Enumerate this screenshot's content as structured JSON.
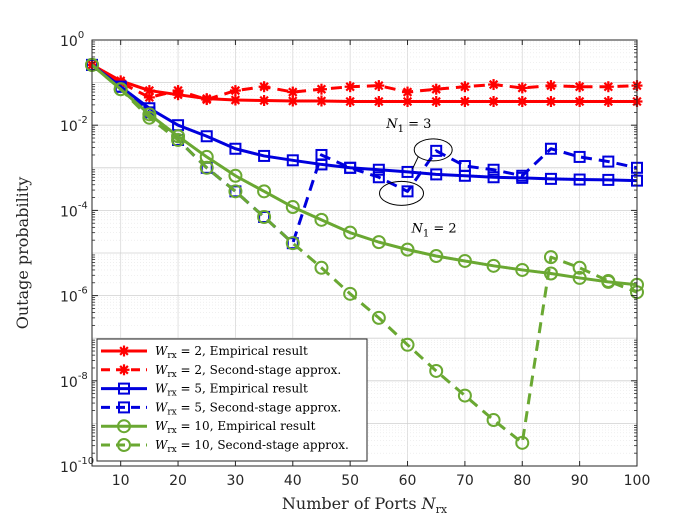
{
  "chart_data": {
    "type": "line",
    "xlabel": "Number of Ports N_rx",
    "xlabel_main": "Number of Ports ",
    "xlabel_var": "N",
    "xlabel_sub": "rx",
    "ylabel": "Outage probability",
    "xlim": [
      5,
      100
    ],
    "ylim_log10": [
      -10,
      0
    ],
    "xticks": [
      10,
      20,
      30,
      40,
      50,
      60,
      70,
      80,
      90,
      100
    ],
    "yticks": [
      {
        "mantissa": "10",
        "exp": "0",
        "value": 0
      },
      {
        "mantissa": "10",
        "exp": "-2",
        "value": -2
      },
      {
        "mantissa": "10",
        "exp": "-4",
        "value": -4
      },
      {
        "mantissa": "10",
        "exp": "-6",
        "value": -6
      },
      {
        "mantissa": "10",
        "exp": "-8",
        "value": -8
      },
      {
        "mantissa": "10",
        "exp": "-10",
        "value": -10
      }
    ],
    "grid": true,
    "x": [
      5,
      10,
      15,
      20,
      25,
      30,
      35,
      40,
      45,
      50,
      55,
      60,
      65,
      70,
      75,
      80,
      85,
      90,
      95,
      100
    ],
    "series": [
      {
        "name": "W_rx = 2, Empirical result",
        "legend_w": "2",
        "legend_desc": "Empirical result",
        "color": "#ff0000",
        "dashed": false,
        "marker": "star",
        "values": [
          0.26,
          0.11,
          0.065,
          0.052,
          0.042,
          0.039,
          0.038,
          0.037,
          0.037,
          0.036,
          0.036,
          0.036,
          0.036,
          0.036,
          0.036,
          0.036,
          0.036,
          0.036,
          0.036,
          0.036
        ]
      },
      {
        "name": "W_rx = 2, Second-stage approx.",
        "legend_w": "2",
        "legend_desc": "Second-stage approx.",
        "color": "#ff0000",
        "dashed": true,
        "marker": "star",
        "values": [
          0.26,
          0.1,
          0.045,
          0.065,
          0.04,
          0.065,
          0.08,
          0.06,
          0.07,
          0.08,
          0.085,
          0.06,
          0.07,
          0.08,
          0.09,
          0.075,
          0.085,
          0.08,
          0.08,
          0.085
        ]
      },
      {
        "name": "W_rx = 5, Empirical result",
        "legend_w": "5",
        "legend_desc": "Empirical result",
        "color": "#0000dd",
        "dashed": false,
        "marker": "square",
        "values": [
          0.26,
          0.08,
          0.025,
          0.01,
          0.0055,
          0.0028,
          0.0019,
          0.0015,
          0.0012,
          0.001,
          0.0009,
          0.0008,
          0.0007,
          0.00065,
          0.0006,
          0.00058,
          0.00055,
          0.00053,
          0.00052,
          0.0005
        ]
      },
      {
        "name": "W_rx = 5, Second-stage approx.",
        "legend_w": "5",
        "legend_desc": "Second-stage approx.",
        "color": "#0000dd",
        "dashed": true,
        "marker": "square",
        "values": [
          0.26,
          0.08,
          0.02,
          0.0045,
          0.001,
          0.00028,
          7e-05,
          1.7e-05,
          0.002,
          0.001,
          0.0006,
          0.00028,
          0.0025,
          0.0011,
          0.0009,
          0.00065,
          0.0028,
          0.0018,
          0.0014,
          0.001
        ]
      },
      {
        "name": "W_rx = 10, Empirical result",
        "legend_w": "10",
        "legend_desc": "Empirical result",
        "color": "#6aa832",
        "dashed": false,
        "marker": "circle",
        "values": [
          0.26,
          0.07,
          0.018,
          0.0055,
          0.0018,
          0.00065,
          0.00028,
          0.00012,
          6e-05,
          3e-05,
          1.8e-05,
          1.2e-05,
          8.5e-06,
          6.5e-06,
          5e-06,
          4e-06,
          3.3e-06,
          2.6e-06,
          2.1e-06,
          1.8e-06
        ]
      },
      {
        "name": "W_rx = 10, Second-stage approx.",
        "legend_w": "10",
        "legend_desc": "Second-stage approx.",
        "color": "#6aa832",
        "dashed": true,
        "marker": "circle",
        "values": [
          0.26,
          0.07,
          0.015,
          0.0045,
          0.001,
          0.00028,
          7e-05,
          1.7e-05,
          4.5e-06,
          1.1e-06,
          3e-07,
          7e-08,
          1.7e-08,
          4.5e-09,
          1.2e-09,
          3.5e-10,
          8e-06,
          4.5e-06,
          2.2e-06,
          1.2e-06
        ]
      }
    ],
    "legend_position": "bottom-left",
    "legend_prefix": "W",
    "legend_sub": "rx",
    "annotations": [
      {
        "var": "N",
        "sub": "1",
        "text": " = 3",
        "target_x": 65,
        "target_value": 0.0025
      },
      {
        "var": "N",
        "sub": "1",
        "text": " = 2",
        "target_x": 60,
        "target_value": 0.00028
      }
    ]
  }
}
